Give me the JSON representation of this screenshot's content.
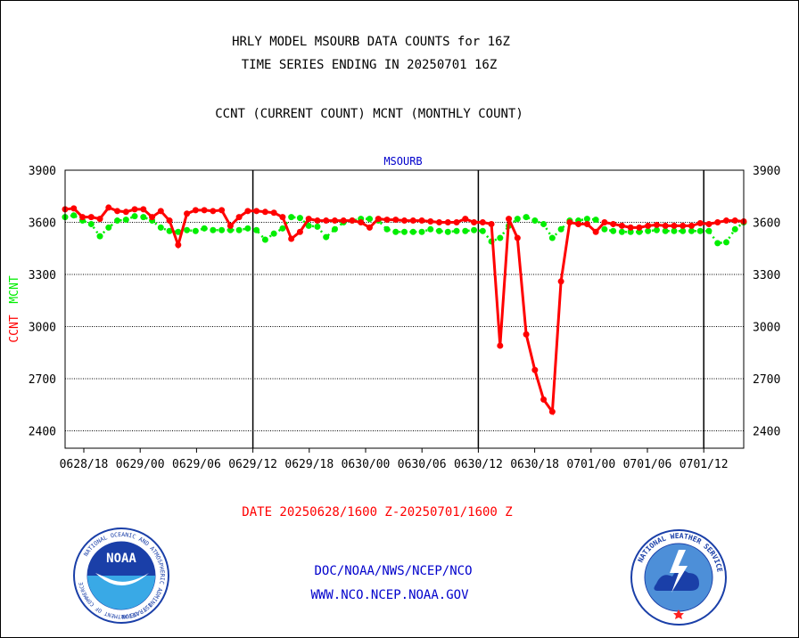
{
  "header": {
    "title_line1": "HRLY MODEL MSOURB DATA COUNTS for 16Z",
    "title_line2": "TIME SERIES ENDING IN 20250701 16Z",
    "subtitle": "CCNT (CURRENT COUNT) MCNT (MONTHLY COUNT)"
  },
  "footer": {
    "date_range": "DATE 20250628/1600 Z-20250701/1600 Z",
    "org_line": "DOC/NOAA/NWS/NCEP/NCO",
    "url_line": "WWW.NCO.NCEP.NOAA.GOV"
  },
  "logos": {
    "noaa_text": "NOAA",
    "noaa_ring": "NATIONAL OCEANIC AND ATMOSPHERIC ADMINISTRATION",
    "noaa_ring_bottom": "U.S. DEPARTMENT OF COMMERCE",
    "nws_ring": "NATIONAL WEATHER SERVICE"
  },
  "colors": {
    "ccnt": "#ff0000",
    "mcnt": "#00ee00",
    "panel_label": "#0000cc",
    "date_text": "#ff0000",
    "link_text": "#0000cc"
  },
  "chart_data": {
    "type": "line",
    "panel_label": "MSOURB",
    "ylabel_ccnt": "CCNT",
    "ylabel_mcnt": "MCNT",
    "ylim": [
      2300,
      3900
    ],
    "yticks": [
      2400,
      2700,
      3000,
      3300,
      3600,
      3900
    ],
    "xticks": [
      "0628/18",
      "0629/00",
      "0629/06",
      "0629/12",
      "0629/18",
      "0630/00",
      "0630/06",
      "0630/12",
      "0630/18",
      "0701/00",
      "0701/06",
      "0701/12"
    ],
    "x_start": "0628/16",
    "x_end": "0701/16",
    "grid": true,
    "series": [
      {
        "name": "CCNT",
        "values": [
          3675,
          3680,
          3630,
          3630,
          3620,
          3685,
          3665,
          3660,
          3675,
          3675,
          3630,
          3665,
          3610,
          3470,
          3650,
          3670,
          3670,
          3665,
          3670,
          3580,
          3630,
          3665,
          3665,
          3660,
          3655,
          3630,
          3505,
          3545,
          3620,
          3610,
          3610,
          3610,
          3610,
          3610,
          3600,
          3570,
          3620,
          3615,
          3615,
          3610,
          3610,
          3610,
          3605,
          3600,
          3600,
          3600,
          3620,
          3600,
          3600,
          3590,
          2890,
          3620,
          3510,
          2955,
          2750,
          2580,
          2510,
          3260,
          3600,
          3590,
          3590,
          3545,
          3600,
          3590,
          3580,
          3570,
          3570,
          3580,
          3585,
          3580,
          3580,
          3580,
          3580,
          3595,
          3590,
          3600,
          3610,
          3610,
          3605
        ]
      },
      {
        "name": "MCNT",
        "values": [
          3630,
          3640,
          3610,
          3590,
          3520,
          3570,
          3610,
          3615,
          3635,
          3630,
          3610,
          3570,
          3550,
          3545,
          3555,
          3550,
          3565,
          3555,
          3555,
          3555,
          3555,
          3565,
          3555,
          3500,
          3535,
          3565,
          3630,
          3625,
          3580,
          3575,
          3515,
          3560,
          3600,
          3610,
          3620,
          3620,
          3610,
          3560,
          3545,
          3545,
          3545,
          3545,
          3560,
          3550,
          3545,
          3550,
          3550,
          3555,
          3550,
          3490,
          3510,
          3580,
          3620,
          3630,
          3610,
          3590,
          3510,
          3560,
          3610,
          3610,
          3620,
          3615,
          3560,
          3550,
          3545,
          3545,
          3545,
          3550,
          3555,
          3550,
          3550,
          3550,
          3550,
          3550,
          3550,
          3480,
          3485,
          3560,
          3600
        ]
      }
    ]
  }
}
